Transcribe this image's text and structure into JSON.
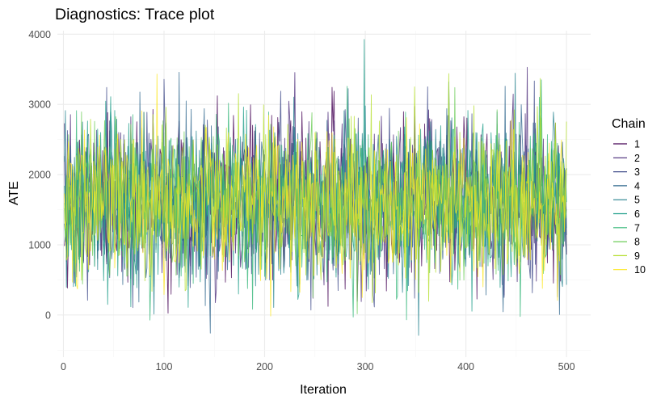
{
  "chart_data": {
    "type": "line",
    "title": "Diagnostics: Trace plot",
    "xlabel": "Iteration",
    "ylabel": "ATE",
    "xlim": [
      -6,
      524
    ],
    "ylim": [
      -600,
      4050
    ],
    "xticks": [
      0,
      100,
      200,
      300,
      400,
      500
    ],
    "yticks": [
      0,
      1000,
      2000,
      3000,
      4000
    ],
    "grid": true,
    "legend": {
      "title": "Chain",
      "position": "right"
    },
    "n_iterations": 500,
    "series": [
      {
        "name": "1",
        "color": "#440154",
        "mean": 1620,
        "sd": 560,
        "seed": 11
      },
      {
        "name": "2",
        "color": "#482878",
        "mean": 1620,
        "sd": 560,
        "seed": 23
      },
      {
        "name": "3",
        "color": "#3E4A89",
        "mean": 1620,
        "sd": 560,
        "seed": 37
      },
      {
        "name": "4",
        "color": "#31688E",
        "mean": 1620,
        "sd": 560,
        "seed": 41
      },
      {
        "name": "5",
        "color": "#26828E",
        "mean": 1620,
        "sd": 560,
        "seed": 53
      },
      {
        "name": "6",
        "color": "#1F9E89",
        "mean": 1620,
        "sd": 560,
        "seed": 67
      },
      {
        "name": "7",
        "color": "#35B779",
        "mean": 1620,
        "sd": 560,
        "seed": 71
      },
      {
        "name": "8",
        "color": "#6DCD59",
        "mean": 1620,
        "sd": 560,
        "seed": 83
      },
      {
        "name": "9",
        "color": "#B4DE2C",
        "mean": 1620,
        "sd": 560,
        "seed": 97
      },
      {
        "name": "10",
        "color": "#FDE725",
        "mean": 1620,
        "sd": 560,
        "seed": 101
      }
    ]
  }
}
